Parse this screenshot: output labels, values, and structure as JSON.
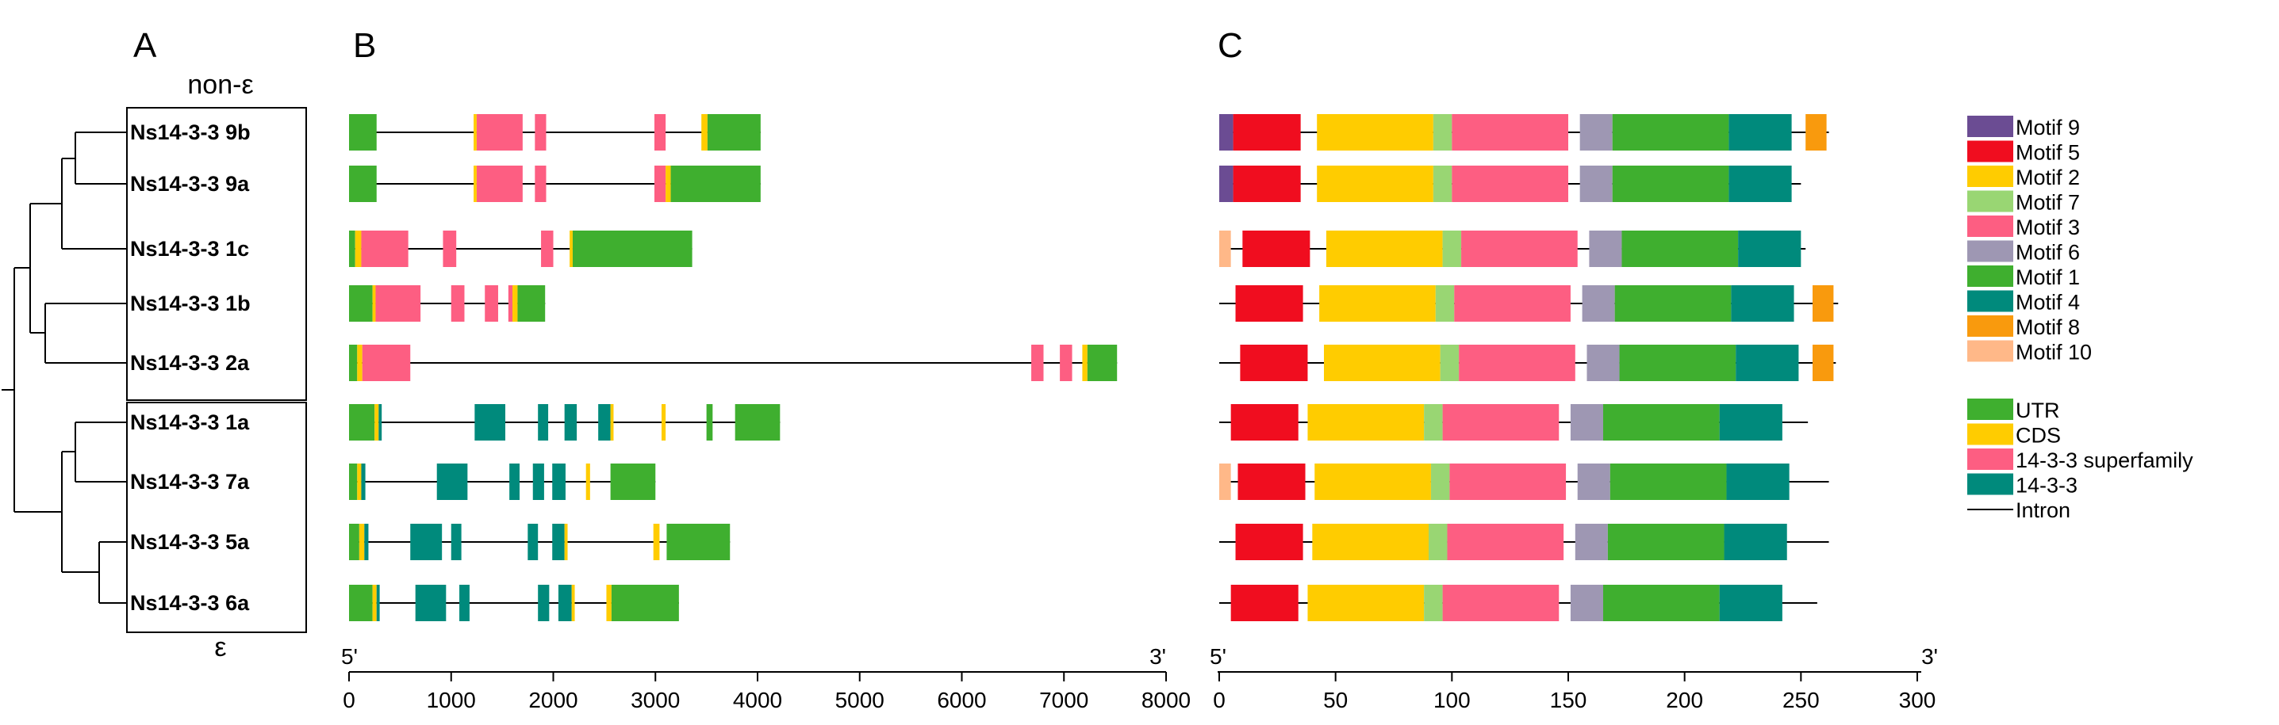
{
  "panels": {
    "a": "A",
    "b": "B",
    "c": "C"
  },
  "groups": {
    "top": "non-ε",
    "bottom": "ε"
  },
  "genes": [
    "Ns14-3-3 9b",
    "Ns14-3-3 9a",
    "Ns14-3-3 1c",
    "Ns14-3-3 1b",
    "Ns14-3-3 2a",
    "Ns14-3-3 1a",
    "Ns14-3-3 7a",
    "Ns14-3-3 5a",
    "Ns14-3-3 6a"
  ],
  "axis_b": {
    "start": "5'",
    "end": "3'",
    "min": 0,
    "max": 8000,
    "ticks": [
      "0",
      "1000",
      "2000",
      "3000",
      "4000",
      "5000",
      "6000",
      "7000",
      "8000"
    ]
  },
  "axis_c": {
    "start": "5'",
    "end": "3'",
    "min": 0,
    "max": 300,
    "ticks": [
      "0",
      "50",
      "100",
      "150",
      "200",
      "250",
      "300"
    ]
  },
  "colors": {
    "motif9": "#6B4C93",
    "motif5": "#F00D1F",
    "motif2": "#FFCC00",
    "motif7": "#99D673",
    "motif3": "#FD5E82",
    "motif6": "#9E97B3",
    "motif1": "#3FAF2F",
    "motif4": "#008A7C",
    "motif8": "#F99A0D",
    "motif10": "#FFB888",
    "utr": "#3FAF2F",
    "cds": "#FFCC00",
    "superfamily": "#FD5E82",
    "fam1433": "#008A7C",
    "intron": "#000000"
  },
  "legend_motifs": [
    {
      "label": "Motif 9",
      "color": "motif9"
    },
    {
      "label": "Motif 5",
      "color": "motif5"
    },
    {
      "label": "Motif 2",
      "color": "motif2"
    },
    {
      "label": "Motif 7",
      "color": "motif7"
    },
    {
      "label": "Motif 3",
      "color": "motif3"
    },
    {
      "label": "Motif 6",
      "color": "motif6"
    },
    {
      "label": "Motif 1",
      "color": "motif1"
    },
    {
      "label": "Motif 4",
      "color": "motif4"
    },
    {
      "label": "Motif 8",
      "color": "motif8"
    },
    {
      "label": "Motif 10",
      "color": "motif10"
    }
  ],
  "legend_structure": [
    {
      "label": "UTR",
      "color": "utr",
      "line": false
    },
    {
      "label": "CDS",
      "color": "cds",
      "line": false
    },
    {
      "label": "14-3-3 superfamily",
      "color": "superfamily",
      "line": false
    },
    {
      "label": "14-3-3",
      "color": "fam1433",
      "line": false
    },
    {
      "label": "Intron",
      "color": "intron",
      "line": true
    }
  ],
  "gene_structures": [
    {
      "length": 4030,
      "blocks": [
        {
          "s": 0,
          "e": 270,
          "t": "utr"
        },
        {
          "s": 1220,
          "e": 1250,
          "t": "cds"
        },
        {
          "s": 1250,
          "e": 1700,
          "t": "superfamily"
        },
        {
          "s": 1820,
          "e": 1930,
          "t": "superfamily"
        },
        {
          "s": 2990,
          "e": 3100,
          "t": "superfamily"
        },
        {
          "s": 3450,
          "e": 3510,
          "t": "cds"
        },
        {
          "s": 3510,
          "e": 4030,
          "t": "utr"
        }
      ]
    },
    {
      "length": 4030,
      "blocks": [
        {
          "s": 0,
          "e": 270,
          "t": "utr"
        },
        {
          "s": 1220,
          "e": 1250,
          "t": "cds"
        },
        {
          "s": 1250,
          "e": 1700,
          "t": "superfamily"
        },
        {
          "s": 1820,
          "e": 1930,
          "t": "superfamily"
        },
        {
          "s": 2990,
          "e": 3100,
          "t": "superfamily"
        },
        {
          "s": 3100,
          "e": 3150,
          "t": "cds"
        },
        {
          "s": 3150,
          "e": 4030,
          "t": "utr"
        }
      ]
    },
    {
      "length": 3360,
      "blocks": [
        {
          "s": 0,
          "e": 60,
          "t": "utr"
        },
        {
          "s": 60,
          "e": 120,
          "t": "cds"
        },
        {
          "s": 120,
          "e": 580,
          "t": "superfamily"
        },
        {
          "s": 920,
          "e": 1050,
          "t": "superfamily"
        },
        {
          "s": 1880,
          "e": 2000,
          "t": "superfamily"
        },
        {
          "s": 2160,
          "e": 2190,
          "t": "cds"
        },
        {
          "s": 2190,
          "e": 3360,
          "t": "utr"
        }
      ]
    },
    {
      "length": 1920,
      "blocks": [
        {
          "s": 0,
          "e": 230,
          "t": "utr"
        },
        {
          "s": 230,
          "e": 260,
          "t": "cds"
        },
        {
          "s": 260,
          "e": 700,
          "t": "superfamily"
        },
        {
          "s": 1000,
          "e": 1130,
          "t": "superfamily"
        },
        {
          "s": 1330,
          "e": 1460,
          "t": "superfamily"
        },
        {
          "s": 1560,
          "e": 1600,
          "t": "superfamily"
        },
        {
          "s": 1600,
          "e": 1650,
          "t": "cds"
        },
        {
          "s": 1650,
          "e": 1920,
          "t": "utr"
        }
      ]
    },
    {
      "length": 7520,
      "blocks": [
        {
          "s": 0,
          "e": 80,
          "t": "utr"
        },
        {
          "s": 80,
          "e": 130,
          "t": "cds"
        },
        {
          "s": 130,
          "e": 600,
          "t": "superfamily"
        },
        {
          "s": 6680,
          "e": 6800,
          "t": "superfamily"
        },
        {
          "s": 6960,
          "e": 7080,
          "t": "superfamily"
        },
        {
          "s": 7180,
          "e": 7230,
          "t": "cds"
        },
        {
          "s": 7230,
          "e": 7520,
          "t": "utr"
        }
      ]
    },
    {
      "length": 4220,
      "blocks": [
        {
          "s": 0,
          "e": 250,
          "t": "utr"
        },
        {
          "s": 250,
          "e": 290,
          "t": "cds"
        },
        {
          "s": 290,
          "e": 320,
          "t": "fam1433"
        },
        {
          "s": 1230,
          "e": 1530,
          "t": "fam1433"
        },
        {
          "s": 1850,
          "e": 1950,
          "t": "fam1433"
        },
        {
          "s": 2110,
          "e": 2230,
          "t": "fam1433"
        },
        {
          "s": 2440,
          "e": 2560,
          "t": "fam1433"
        },
        {
          "s": 2560,
          "e": 2590,
          "t": "cds"
        },
        {
          "s": 3060,
          "e": 3100,
          "t": "cds"
        },
        {
          "s": 3500,
          "e": 3560,
          "t": "utr"
        },
        {
          "s": 3780,
          "e": 4220,
          "t": "utr"
        }
      ]
    },
    {
      "length": 3000,
      "blocks": [
        {
          "s": 0,
          "e": 80,
          "t": "utr"
        },
        {
          "s": 80,
          "e": 120,
          "t": "cds"
        },
        {
          "s": 120,
          "e": 160,
          "t": "fam1433"
        },
        {
          "s": 860,
          "e": 1160,
          "t": "fam1433"
        },
        {
          "s": 1570,
          "e": 1670,
          "t": "fam1433"
        },
        {
          "s": 1800,
          "e": 1910,
          "t": "fam1433"
        },
        {
          "s": 1990,
          "e": 2120,
          "t": "fam1433"
        },
        {
          "s": 2320,
          "e": 2360,
          "t": "cds"
        },
        {
          "s": 2560,
          "e": 3000,
          "t": "utr"
        }
      ]
    },
    {
      "length": 3730,
      "blocks": [
        {
          "s": 0,
          "e": 100,
          "t": "utr"
        },
        {
          "s": 100,
          "e": 150,
          "t": "cds"
        },
        {
          "s": 150,
          "e": 190,
          "t": "fam1433"
        },
        {
          "s": 600,
          "e": 910,
          "t": "fam1433"
        },
        {
          "s": 1000,
          "e": 1100,
          "t": "fam1433"
        },
        {
          "s": 1750,
          "e": 1850,
          "t": "fam1433"
        },
        {
          "s": 1990,
          "e": 2110,
          "t": "fam1433"
        },
        {
          "s": 2110,
          "e": 2140,
          "t": "cds"
        },
        {
          "s": 2980,
          "e": 3040,
          "t": "cds"
        },
        {
          "s": 3110,
          "e": 3730,
          "t": "utr"
        }
      ]
    },
    {
      "length": 3230,
      "blocks": [
        {
          "s": 0,
          "e": 230,
          "t": "utr"
        },
        {
          "s": 230,
          "e": 270,
          "t": "cds"
        },
        {
          "s": 270,
          "e": 300,
          "t": "fam1433"
        },
        {
          "s": 650,
          "e": 950,
          "t": "fam1433"
        },
        {
          "s": 1080,
          "e": 1180,
          "t": "fam1433"
        },
        {
          "s": 1850,
          "e": 1960,
          "t": "fam1433"
        },
        {
          "s": 2050,
          "e": 2180,
          "t": "fam1433"
        },
        {
          "s": 2180,
          "e": 2210,
          "t": "cds"
        },
        {
          "s": 2520,
          "e": 2570,
          "t": "cds"
        },
        {
          "s": 2570,
          "e": 3230,
          "t": "utr"
        }
      ]
    }
  ],
  "motif_structures": [
    {
      "length": 262,
      "blocks": [
        {
          "s": 0,
          "e": 6,
          "m": "motif9"
        },
        {
          "s": 6,
          "e": 35,
          "m": "motif5"
        },
        {
          "s": 42,
          "e": 92,
          "m": "motif2"
        },
        {
          "s": 92,
          "e": 100,
          "m": "motif7"
        },
        {
          "s": 100,
          "e": 150,
          "m": "motif3"
        },
        {
          "s": 155,
          "e": 169,
          "m": "motif6"
        },
        {
          "s": 169,
          "e": 219,
          "m": "motif1"
        },
        {
          "s": 219,
          "e": 246,
          "m": "motif4"
        },
        {
          "s": 252,
          "e": 261,
          "m": "motif8"
        }
      ]
    },
    {
      "length": 250,
      "blocks": [
        {
          "s": 0,
          "e": 6,
          "m": "motif9"
        },
        {
          "s": 6,
          "e": 35,
          "m": "motif5"
        },
        {
          "s": 42,
          "e": 92,
          "m": "motif2"
        },
        {
          "s": 92,
          "e": 100,
          "m": "motif7"
        },
        {
          "s": 100,
          "e": 150,
          "m": "motif3"
        },
        {
          "s": 155,
          "e": 169,
          "m": "motif6"
        },
        {
          "s": 169,
          "e": 219,
          "m": "motif1"
        },
        {
          "s": 219,
          "e": 246,
          "m": "motif4"
        }
      ]
    },
    {
      "length": 252,
      "blocks": [
        {
          "s": 0,
          "e": 5,
          "m": "motif10"
        },
        {
          "s": 10,
          "e": 39,
          "m": "motif5"
        },
        {
          "s": 46,
          "e": 96,
          "m": "motif2"
        },
        {
          "s": 96,
          "e": 104,
          "m": "motif7"
        },
        {
          "s": 104,
          "e": 154,
          "m": "motif3"
        },
        {
          "s": 159,
          "e": 173,
          "m": "motif6"
        },
        {
          "s": 173,
          "e": 223,
          "m": "motif1"
        },
        {
          "s": 223,
          "e": 250,
          "m": "motif4"
        }
      ]
    },
    {
      "length": 266,
      "blocks": [
        {
          "s": 7,
          "e": 36,
          "m": "motif5"
        },
        {
          "s": 43,
          "e": 93,
          "m": "motif2"
        },
        {
          "s": 93,
          "e": 101,
          "m": "motif7"
        },
        {
          "s": 101,
          "e": 151,
          "m": "motif3"
        },
        {
          "s": 156,
          "e": 170,
          "m": "motif6"
        },
        {
          "s": 170,
          "e": 220,
          "m": "motif1"
        },
        {
          "s": 220,
          "e": 247,
          "m": "motif4"
        },
        {
          "s": 255,
          "e": 264,
          "m": "motif8"
        }
      ]
    },
    {
      "length": 265,
      "blocks": [
        {
          "s": 9,
          "e": 38,
          "m": "motif5"
        },
        {
          "s": 45,
          "e": 95,
          "m": "motif2"
        },
        {
          "s": 95,
          "e": 103,
          "m": "motif7"
        },
        {
          "s": 103,
          "e": 153,
          "m": "motif3"
        },
        {
          "s": 158,
          "e": 172,
          "m": "motif6"
        },
        {
          "s": 172,
          "e": 222,
          "m": "motif1"
        },
        {
          "s": 222,
          "e": 249,
          "m": "motif4"
        },
        {
          "s": 255,
          "e": 264,
          "m": "motif8"
        }
      ]
    },
    {
      "length": 253,
      "blocks": [
        {
          "s": 5,
          "e": 34,
          "m": "motif5"
        },
        {
          "s": 38,
          "e": 88,
          "m": "motif2"
        },
        {
          "s": 88,
          "e": 96,
          "m": "motif7"
        },
        {
          "s": 96,
          "e": 146,
          "m": "motif3"
        },
        {
          "s": 151,
          "e": 165,
          "m": "motif6"
        },
        {
          "s": 165,
          "e": 215,
          "m": "motif1"
        },
        {
          "s": 215,
          "e": 242,
          "m": "motif4"
        }
      ]
    },
    {
      "length": 262,
      "blocks": [
        {
          "s": 0,
          "e": 5,
          "m": "motif10"
        },
        {
          "s": 8,
          "e": 37,
          "m": "motif5"
        },
        {
          "s": 41,
          "e": 91,
          "m": "motif2"
        },
        {
          "s": 91,
          "e": 99,
          "m": "motif7"
        },
        {
          "s": 99,
          "e": 149,
          "m": "motif3"
        },
        {
          "s": 154,
          "e": 168,
          "m": "motif6"
        },
        {
          "s": 168,
          "e": 218,
          "m": "motif1"
        },
        {
          "s": 218,
          "e": 245,
          "m": "motif4"
        }
      ]
    },
    {
      "length": 262,
      "blocks": [
        {
          "s": 7,
          "e": 36,
          "m": "motif5"
        },
        {
          "s": 40,
          "e": 90,
          "m": "motif2"
        },
        {
          "s": 90,
          "e": 98,
          "m": "motif7"
        },
        {
          "s": 98,
          "e": 148,
          "m": "motif3"
        },
        {
          "s": 153,
          "e": 167,
          "m": "motif6"
        },
        {
          "s": 167,
          "e": 217,
          "m": "motif1"
        },
        {
          "s": 217,
          "e": 244,
          "m": "motif4"
        }
      ]
    },
    {
      "length": 257,
      "blocks": [
        {
          "s": 5,
          "e": 34,
          "m": "motif5"
        },
        {
          "s": 38,
          "e": 88,
          "m": "motif2"
        },
        {
          "s": 88,
          "e": 96,
          "m": "motif7"
        },
        {
          "s": 96,
          "e": 146,
          "m": "motif3"
        },
        {
          "s": 151,
          "e": 165,
          "m": "motif6"
        },
        {
          "s": 165,
          "e": 215,
          "m": "motif1"
        },
        {
          "s": 215,
          "e": 242,
          "m": "motif4"
        }
      ]
    }
  ]
}
